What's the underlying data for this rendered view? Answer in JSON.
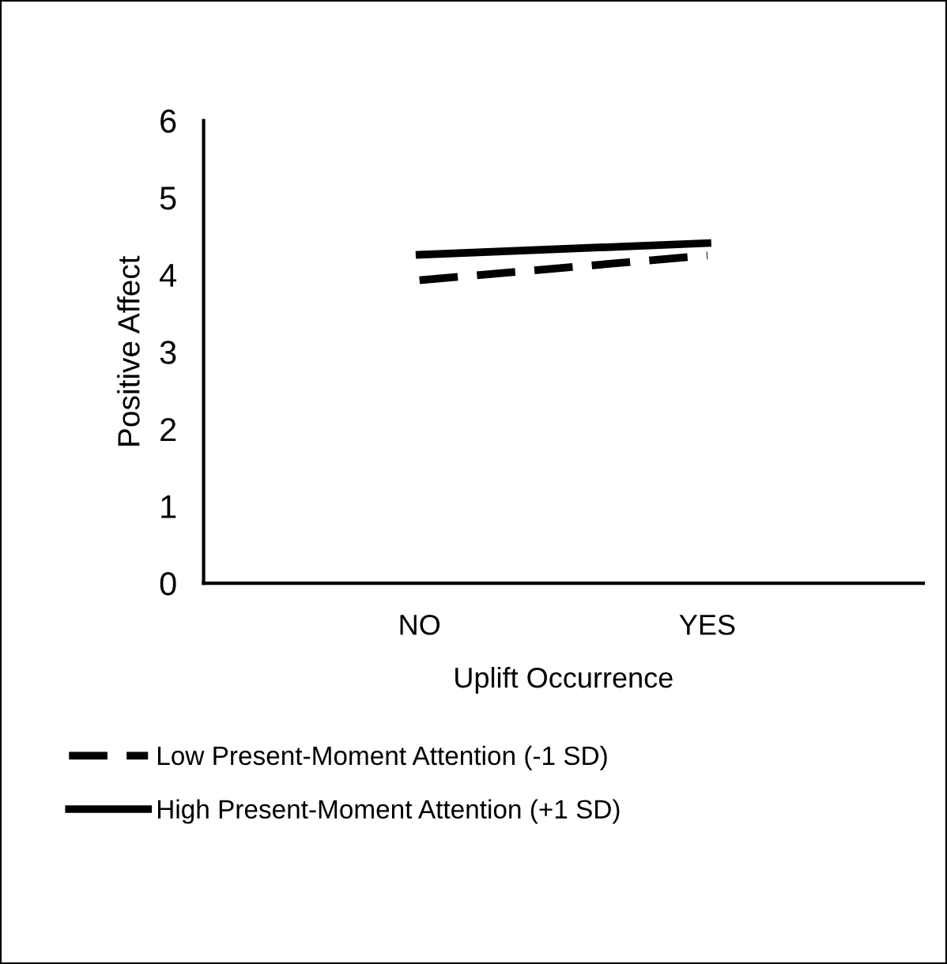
{
  "chart_data": {
    "type": "line",
    "xlabel": "Uplift Occurrence",
    "ylabel": "Positive Affect",
    "categories": [
      "NO",
      "YES"
    ],
    "series": [
      {
        "name": "Low Present-Moment Attention (-1 SD)",
        "color": "#000000",
        "values": [
          3.93,
          4.25
        ],
        "line_style": "dashed"
      },
      {
        "name": "High Present-Moment Attention (+1 SD)",
        "color": "#000000",
        "values": [
          4.26,
          4.41
        ],
        "line_style": "solid"
      }
    ],
    "ylim": [
      0,
      6
    ],
    "yticks": [
      0,
      1,
      2,
      3,
      4,
      5,
      6
    ],
    "grid": false,
    "legend": "bottom",
    "marker": "none"
  }
}
